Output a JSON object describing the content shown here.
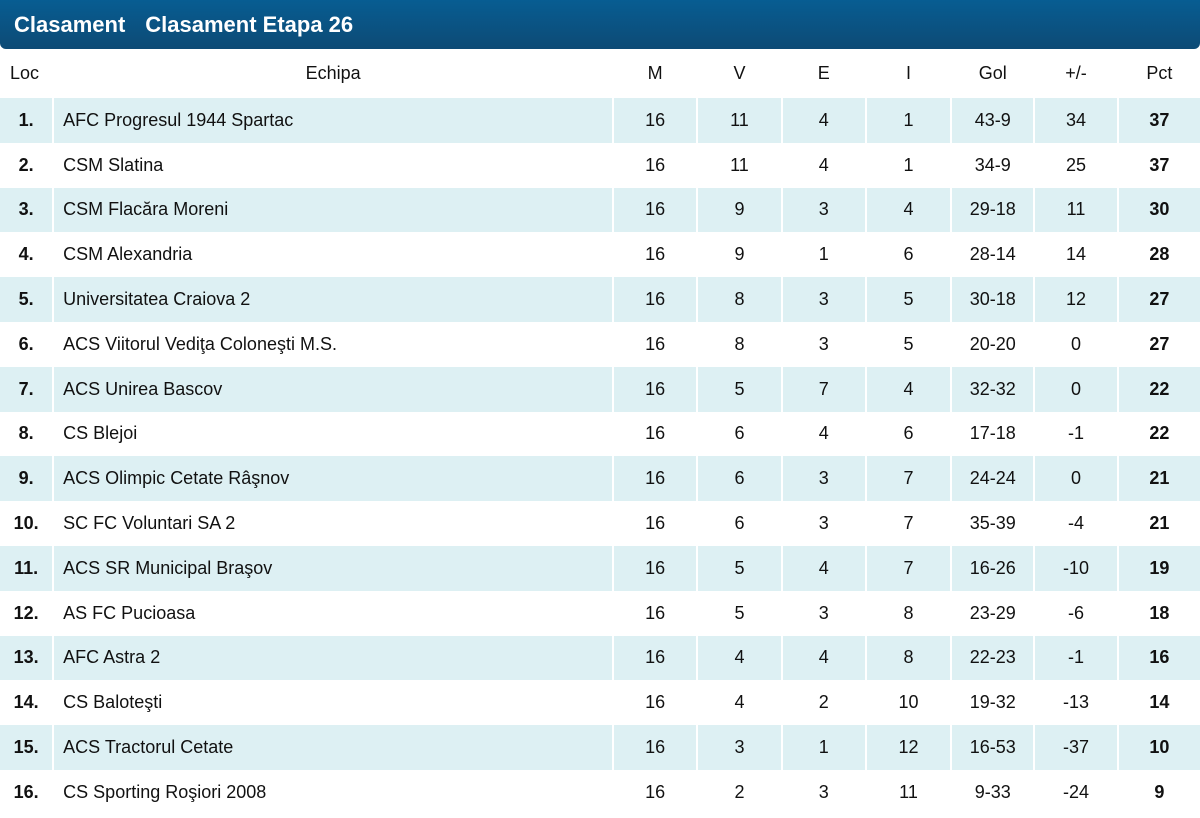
{
  "header": {
    "tab1": "Clasament",
    "tab2": "Clasament Etapa 26"
  },
  "columns": [
    "Loc",
    "Echipa",
    "M",
    "V",
    "E",
    "I",
    "Gol",
    "+/-",
    "Pct"
  ],
  "rows": [
    [
      "1.",
      "AFC Progresul 1944 Spartac",
      "16",
      "11",
      "4",
      "1",
      "43-9",
      "34",
      "37"
    ],
    [
      "2.",
      "CSM Slatina",
      "16",
      "11",
      "4",
      "1",
      "34-9",
      "25",
      "37"
    ],
    [
      "3.",
      "CSM Flacăra Moreni",
      "16",
      "9",
      "3",
      "4",
      "29-18",
      "11",
      "30"
    ],
    [
      "4.",
      "CSM Alexandria",
      "16",
      "9",
      "1",
      "6",
      "28-14",
      "14",
      "28"
    ],
    [
      "5.",
      "Universitatea Craiova 2",
      "16",
      "8",
      "3",
      "5",
      "30-18",
      "12",
      "27"
    ],
    [
      "6.",
      "ACS Viitorul Vediţa Coloneşti M.S.",
      "16",
      "8",
      "3",
      "5",
      "20-20",
      "0",
      "27"
    ],
    [
      "7.",
      "ACS Unirea Bascov",
      "16",
      "5",
      "7",
      "4",
      "32-32",
      "0",
      "22"
    ],
    [
      "8.",
      "CS Blejoi",
      "16",
      "6",
      "4",
      "6",
      "17-18",
      "-1",
      "22"
    ],
    [
      "9.",
      "ACS Olimpic Cetate Râşnov",
      "16",
      "6",
      "3",
      "7",
      "24-24",
      "0",
      "21"
    ],
    [
      "10.",
      "SC FC Voluntari SA 2",
      "16",
      "6",
      "3",
      "7",
      "35-39",
      "-4",
      "21"
    ],
    [
      "11.",
      "ACS SR Municipal Braşov",
      "16",
      "5",
      "4",
      "7",
      "16-26",
      "-10",
      "19"
    ],
    [
      "12.",
      "AS FC Pucioasa",
      "16",
      "5",
      "3",
      "8",
      "23-29",
      "-6",
      "18"
    ],
    [
      "13.",
      "AFC Astra 2",
      "16",
      "4",
      "4",
      "8",
      "22-23",
      "-1",
      "16"
    ],
    [
      "14.",
      "CS Baloteşti",
      "16",
      "4",
      "2",
      "10",
      "19-32",
      "-13",
      "14"
    ],
    [
      "15.",
      "ACS Tractorul Cetate",
      "16",
      "3",
      "1",
      "12",
      "16-53",
      "-37",
      "10"
    ],
    [
      "16.",
      "CS Sporting Roşiori 2008",
      "16",
      "2",
      "3",
      "11",
      "9-33",
      "-24",
      "9"
    ]
  ]
}
